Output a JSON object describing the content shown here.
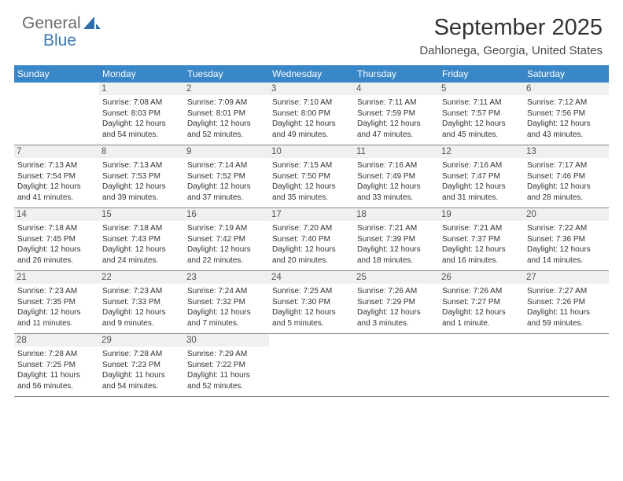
{
  "logo": {
    "part1": "General",
    "part2": "Blue"
  },
  "header": {
    "title": "September 2025",
    "location": "Dahlonega, Georgia, United States"
  },
  "colors": {
    "header_bg": "#3a87c7",
    "header_fg": "#ffffff",
    "daynum_bg": "#eef0f1",
    "rule": "#888888",
    "brand_blue": "#3a78b5"
  },
  "weekdays": [
    "Sunday",
    "Monday",
    "Tuesday",
    "Wednesday",
    "Thursday",
    "Friday",
    "Saturday"
  ],
  "weeks": [
    [
      null,
      {
        "n": "1",
        "sr": "Sunrise: 7:08 AM",
        "ss": "Sunset: 8:03 PM",
        "d1": "Daylight: 12 hours",
        "d2": "and 54 minutes."
      },
      {
        "n": "2",
        "sr": "Sunrise: 7:09 AM",
        "ss": "Sunset: 8:01 PM",
        "d1": "Daylight: 12 hours",
        "d2": "and 52 minutes."
      },
      {
        "n": "3",
        "sr": "Sunrise: 7:10 AM",
        "ss": "Sunset: 8:00 PM",
        "d1": "Daylight: 12 hours",
        "d2": "and 49 minutes."
      },
      {
        "n": "4",
        "sr": "Sunrise: 7:11 AM",
        "ss": "Sunset: 7:59 PM",
        "d1": "Daylight: 12 hours",
        "d2": "and 47 minutes."
      },
      {
        "n": "5",
        "sr": "Sunrise: 7:11 AM",
        "ss": "Sunset: 7:57 PM",
        "d1": "Daylight: 12 hours",
        "d2": "and 45 minutes."
      },
      {
        "n": "6",
        "sr": "Sunrise: 7:12 AM",
        "ss": "Sunset: 7:56 PM",
        "d1": "Daylight: 12 hours",
        "d2": "and 43 minutes."
      }
    ],
    [
      {
        "n": "7",
        "sr": "Sunrise: 7:13 AM",
        "ss": "Sunset: 7:54 PM",
        "d1": "Daylight: 12 hours",
        "d2": "and 41 minutes."
      },
      {
        "n": "8",
        "sr": "Sunrise: 7:13 AM",
        "ss": "Sunset: 7:53 PM",
        "d1": "Daylight: 12 hours",
        "d2": "and 39 minutes."
      },
      {
        "n": "9",
        "sr": "Sunrise: 7:14 AM",
        "ss": "Sunset: 7:52 PM",
        "d1": "Daylight: 12 hours",
        "d2": "and 37 minutes."
      },
      {
        "n": "10",
        "sr": "Sunrise: 7:15 AM",
        "ss": "Sunset: 7:50 PM",
        "d1": "Daylight: 12 hours",
        "d2": "and 35 minutes."
      },
      {
        "n": "11",
        "sr": "Sunrise: 7:16 AM",
        "ss": "Sunset: 7:49 PM",
        "d1": "Daylight: 12 hours",
        "d2": "and 33 minutes."
      },
      {
        "n": "12",
        "sr": "Sunrise: 7:16 AM",
        "ss": "Sunset: 7:47 PM",
        "d1": "Daylight: 12 hours",
        "d2": "and 31 minutes."
      },
      {
        "n": "13",
        "sr": "Sunrise: 7:17 AM",
        "ss": "Sunset: 7:46 PM",
        "d1": "Daylight: 12 hours",
        "d2": "and 28 minutes."
      }
    ],
    [
      {
        "n": "14",
        "sr": "Sunrise: 7:18 AM",
        "ss": "Sunset: 7:45 PM",
        "d1": "Daylight: 12 hours",
        "d2": "and 26 minutes."
      },
      {
        "n": "15",
        "sr": "Sunrise: 7:18 AM",
        "ss": "Sunset: 7:43 PM",
        "d1": "Daylight: 12 hours",
        "d2": "and 24 minutes."
      },
      {
        "n": "16",
        "sr": "Sunrise: 7:19 AM",
        "ss": "Sunset: 7:42 PM",
        "d1": "Daylight: 12 hours",
        "d2": "and 22 minutes."
      },
      {
        "n": "17",
        "sr": "Sunrise: 7:20 AM",
        "ss": "Sunset: 7:40 PM",
        "d1": "Daylight: 12 hours",
        "d2": "and 20 minutes."
      },
      {
        "n": "18",
        "sr": "Sunrise: 7:21 AM",
        "ss": "Sunset: 7:39 PM",
        "d1": "Daylight: 12 hours",
        "d2": "and 18 minutes."
      },
      {
        "n": "19",
        "sr": "Sunrise: 7:21 AM",
        "ss": "Sunset: 7:37 PM",
        "d1": "Daylight: 12 hours",
        "d2": "and 16 minutes."
      },
      {
        "n": "20",
        "sr": "Sunrise: 7:22 AM",
        "ss": "Sunset: 7:36 PM",
        "d1": "Daylight: 12 hours",
        "d2": "and 14 minutes."
      }
    ],
    [
      {
        "n": "21",
        "sr": "Sunrise: 7:23 AM",
        "ss": "Sunset: 7:35 PM",
        "d1": "Daylight: 12 hours",
        "d2": "and 11 minutes."
      },
      {
        "n": "22",
        "sr": "Sunrise: 7:23 AM",
        "ss": "Sunset: 7:33 PM",
        "d1": "Daylight: 12 hours",
        "d2": "and 9 minutes."
      },
      {
        "n": "23",
        "sr": "Sunrise: 7:24 AM",
        "ss": "Sunset: 7:32 PM",
        "d1": "Daylight: 12 hours",
        "d2": "and 7 minutes."
      },
      {
        "n": "24",
        "sr": "Sunrise: 7:25 AM",
        "ss": "Sunset: 7:30 PM",
        "d1": "Daylight: 12 hours",
        "d2": "and 5 minutes."
      },
      {
        "n": "25",
        "sr": "Sunrise: 7:26 AM",
        "ss": "Sunset: 7:29 PM",
        "d1": "Daylight: 12 hours",
        "d2": "and 3 minutes."
      },
      {
        "n": "26",
        "sr": "Sunrise: 7:26 AM",
        "ss": "Sunset: 7:27 PM",
        "d1": "Daylight: 12 hours",
        "d2": "and 1 minute."
      },
      {
        "n": "27",
        "sr": "Sunrise: 7:27 AM",
        "ss": "Sunset: 7:26 PM",
        "d1": "Daylight: 11 hours",
        "d2": "and 59 minutes."
      }
    ],
    [
      {
        "n": "28",
        "sr": "Sunrise: 7:28 AM",
        "ss": "Sunset: 7:25 PM",
        "d1": "Daylight: 11 hours",
        "d2": "and 56 minutes."
      },
      {
        "n": "29",
        "sr": "Sunrise: 7:28 AM",
        "ss": "Sunset: 7:23 PM",
        "d1": "Daylight: 11 hours",
        "d2": "and 54 minutes."
      },
      {
        "n": "30",
        "sr": "Sunrise: 7:29 AM",
        "ss": "Sunset: 7:22 PM",
        "d1": "Daylight: 11 hours",
        "d2": "and 52 minutes."
      },
      null,
      null,
      null,
      null
    ]
  ]
}
